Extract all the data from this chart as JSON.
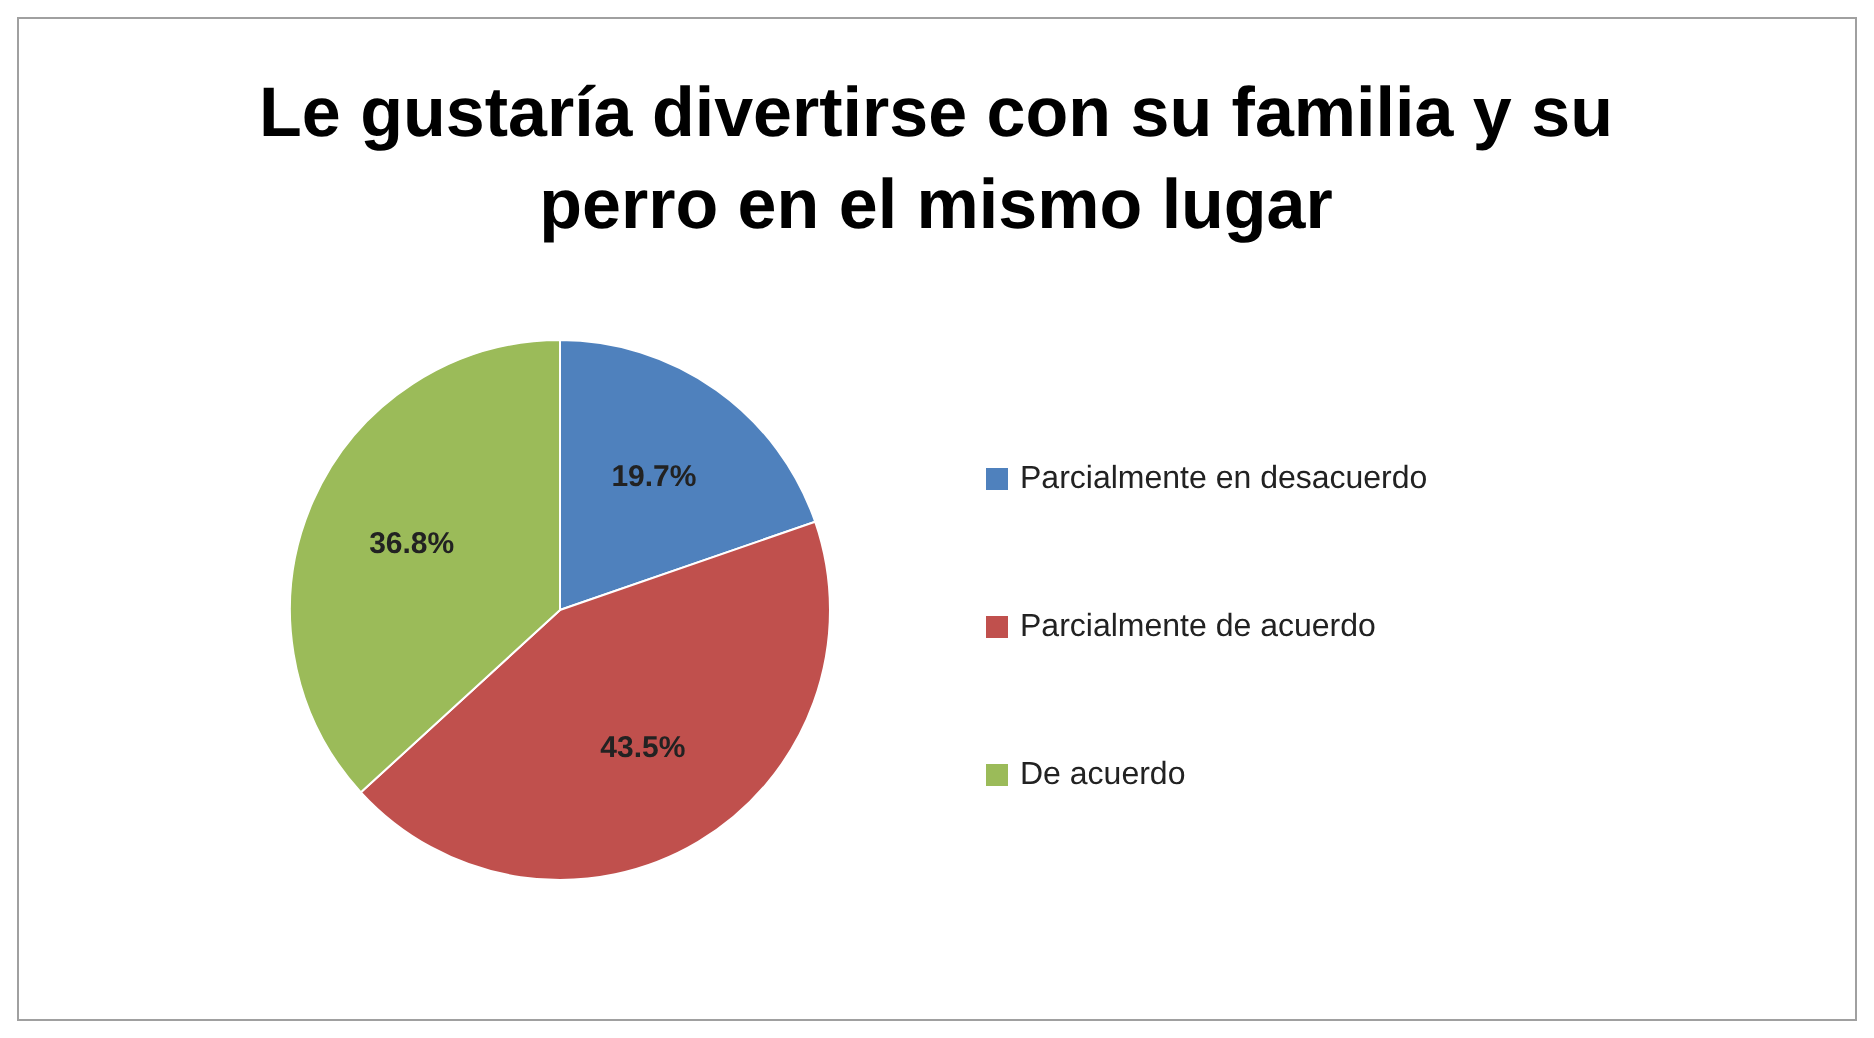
{
  "chart_data": {
    "type": "pie",
    "title": "Le gustaría divertirse con su familia y su perro en el mismo lugar",
    "categories": [
      "Parcialmente en desacuerdo",
      "Parcialmente de acuerdo",
      "De acuerdo"
    ],
    "values": [
      19.7,
      43.5,
      36.8
    ],
    "colors": [
      "#4f81bd",
      "#c0504d",
      "#9bbb59"
    ],
    "value_labels": [
      "19.7%",
      "43.5%",
      "36.8%"
    ],
    "legend": "right"
  }
}
